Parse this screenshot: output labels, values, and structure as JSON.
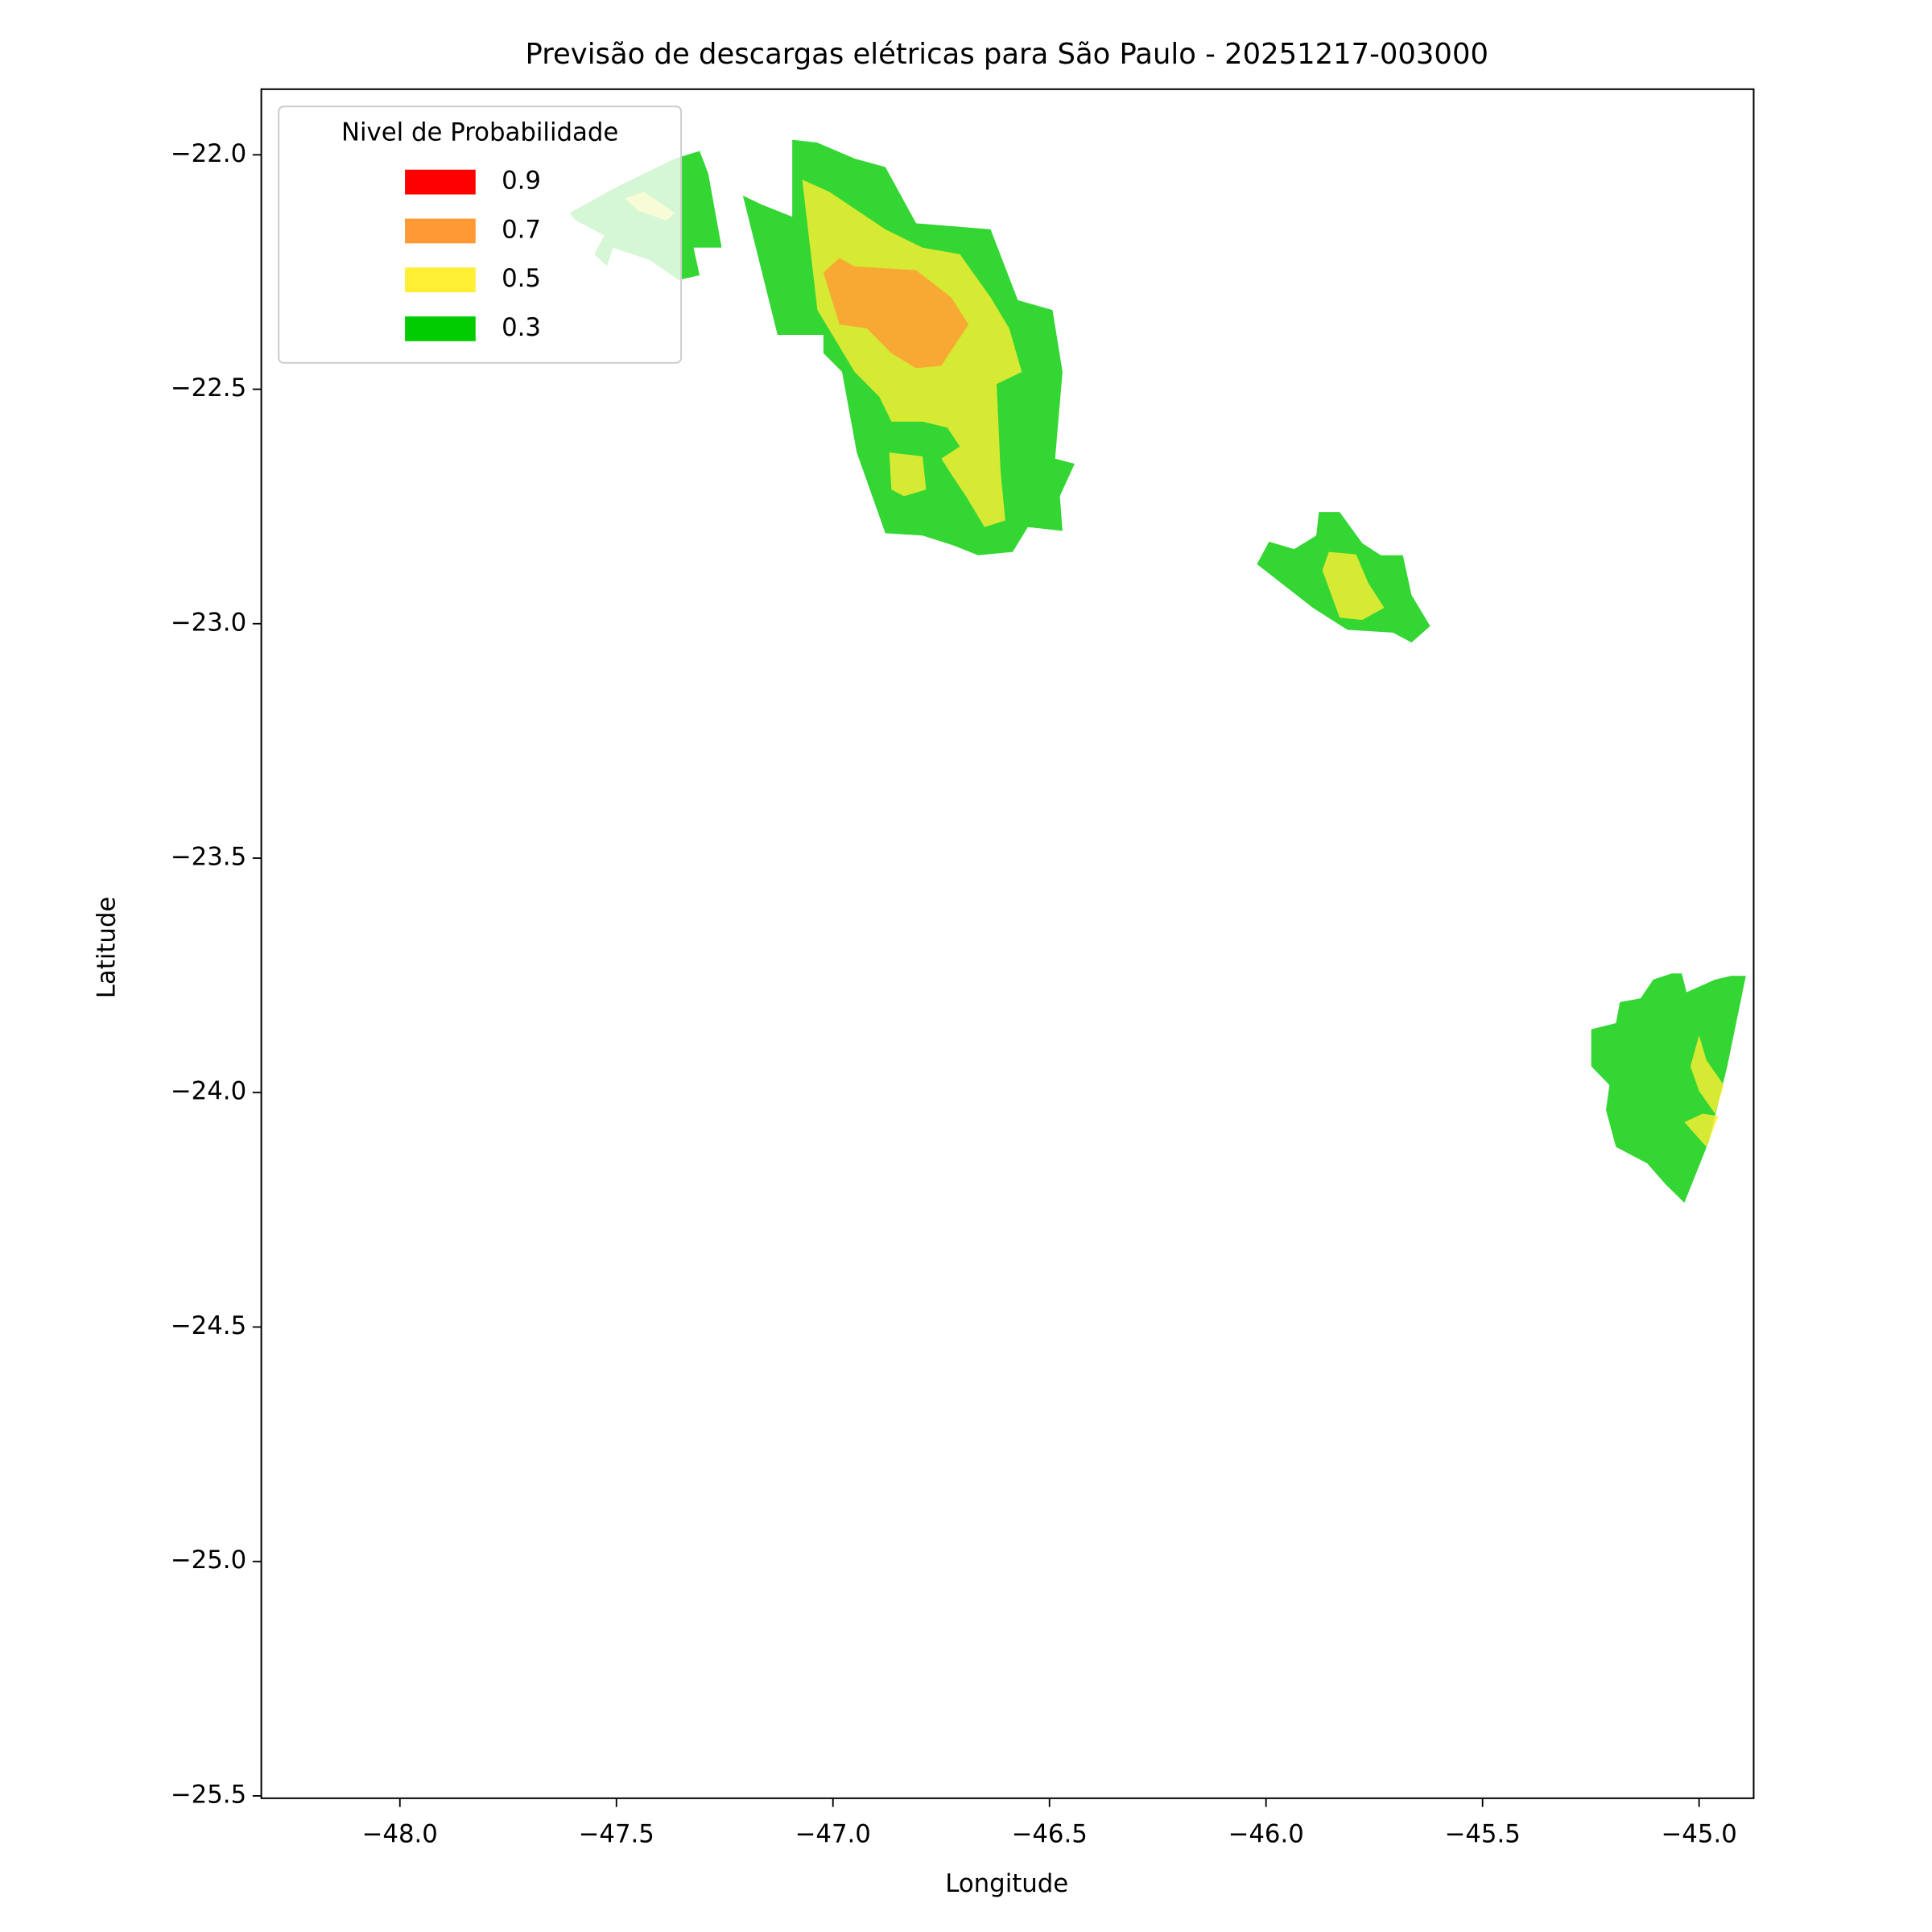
{
  "chart_data": {
    "type": "contourf",
    "title": "Previsão de descargas elétricas para São Paulo - 20251217-003000",
    "x_label": "Longitude",
    "y_label": "Latitude",
    "xlim": [
      -48.32,
      -44.874
    ],
    "ylim": [
      -25.505,
      -21.86
    ],
    "xticks": [
      {
        "value": -48,
        "label": "−48.0"
      },
      {
        "value": -47.5,
        "label": "−47.5"
      },
      {
        "value": -47,
        "label": "−47.0"
      },
      {
        "value": -46.5,
        "label": "−46.5"
      },
      {
        "value": -46,
        "label": "−46.0"
      },
      {
        "value": -45.5,
        "label": "−45.5"
      },
      {
        "value": -45,
        "label": "−45.0"
      }
    ],
    "yticks": [
      {
        "value": -22,
        "label": "−22.0"
      },
      {
        "value": -22.5,
        "label": "−22.5"
      },
      {
        "value": -23,
        "label": "−23.0"
      },
      {
        "value": -23.5,
        "label": "−23.5"
      },
      {
        "value": -24,
        "label": "−24.0"
      },
      {
        "value": -24.5,
        "label": "−24.5"
      },
      {
        "value": -25,
        "label": "−25.0"
      },
      {
        "value": -25.5,
        "label": "−25.5"
      }
    ],
    "legend_title": "Nivel de Probabilidade",
    "legend_position": "upper-left",
    "fill_opacity": 0.8,
    "series": [
      {
        "name": "0.9",
        "color": "#ff0000",
        "polygons": []
      },
      {
        "name": "0.7",
        "color": "#ff9933",
        "polygons": [
          [
            [
              -47.022,
              -22.251
            ],
            [
              -46.985,
              -22.22
            ],
            [
              -46.95,
              -22.238
            ],
            [
              -46.808,
              -22.246
            ],
            [
              -46.727,
              -22.304
            ],
            [
              -46.687,
              -22.362
            ],
            [
              -46.75,
              -22.45
            ],
            [
              -46.808,
              -22.455
            ],
            [
              -46.865,
              -22.423
            ],
            [
              -46.922,
              -22.37
            ],
            [
              -46.985,
              -22.362
            ]
          ]
        ]
      },
      {
        "name": "0.5",
        "color": "#ffee33",
        "polygons": [
          [
            [
              -47.071,
              -22.053
            ],
            [
              -47.008,
              -22.079
            ],
            [
              -46.879,
              -22.159
            ],
            [
              -46.793,
              -22.198
            ],
            [
              -46.707,
              -22.212
            ],
            [
              -46.636,
              -22.304
            ],
            [
              -46.593,
              -22.37
            ],
            [
              -46.564,
              -22.463
            ],
            [
              -46.622,
              -22.489
            ],
            [
              -46.613,
              -22.675
            ],
            [
              -46.602,
              -22.78
            ],
            [
              -46.65,
              -22.794
            ],
            [
              -46.693,
              -22.728
            ],
            [
              -46.722,
              -22.688
            ],
            [
              -46.75,
              -22.648
            ],
            [
              -46.707,
              -22.622
            ],
            [
              -46.736,
              -22.582
            ],
            [
              -46.793,
              -22.569
            ],
            [
              -46.865,
              -22.569
            ],
            [
              -46.893,
              -22.516
            ],
            [
              -46.95,
              -22.463
            ],
            [
              -47.036,
              -22.331
            ]
          ],
          [
            [
              -46.87,
              -22.635
            ],
            [
              -46.793,
              -22.643
            ],
            [
              -46.785,
              -22.714
            ],
            [
              -46.836,
              -22.728
            ],
            [
              -46.865,
              -22.714
            ]
          ],
          [
            [
              -47.48,
              -22.093
            ],
            [
              -47.437,
              -22.079
            ],
            [
              -47.365,
              -22.124
            ],
            [
              -47.385,
              -22.14
            ],
            [
              -47.451,
              -22.119
            ]
          ],
          [
            [
              -45.87,
              -22.886
            ],
            [
              -45.855,
              -22.847
            ],
            [
              -45.792,
              -22.852
            ],
            [
              -45.764,
              -22.913
            ],
            [
              -45.727,
              -22.966
            ],
            [
              -45.778,
              -22.992
            ],
            [
              -45.83,
              -22.987
            ]
          ],
          [
            [
              -45.02,
              -23.944
            ],
            [
              -45.0,
              -23.878
            ],
            [
              -44.983,
              -23.931
            ],
            [
              -44.943,
              -23.984
            ],
            [
              -44.963,
              -24.045
            ],
            [
              -45.0,
              -23.997
            ]
          ],
          [
            [
              -45.034,
              -24.063
            ],
            [
              -44.992,
              -24.045
            ],
            [
              -44.955,
              -24.05
            ],
            [
              -44.983,
              -24.116
            ]
          ]
        ]
      },
      {
        "name": "0.3",
        "color": "#00cc00",
        "polygons": [
          [
            [
              -47.094,
              -21.968
            ],
            [
              -47.036,
              -21.974
            ],
            [
              -46.95,
              -22.008
            ],
            [
              -46.879,
              -22.026
            ],
            [
              -46.808,
              -22.146
            ],
            [
              -46.636,
              -22.159
            ],
            [
              -46.573,
              -22.31
            ],
            [
              -46.493,
              -22.331
            ],
            [
              -46.47,
              -22.463
            ],
            [
              -46.487,
              -22.648
            ],
            [
              -46.442,
              -22.659
            ],
            [
              -46.476,
              -22.728
            ],
            [
              -46.47,
              -22.802
            ],
            [
              -46.55,
              -22.794
            ],
            [
              -46.585,
              -22.847
            ],
            [
              -46.665,
              -22.854
            ],
            [
              -46.722,
              -22.833
            ],
            [
              -46.793,
              -22.812
            ],
            [
              -46.879,
              -22.807
            ],
            [
              -46.945,
              -22.635
            ],
            [
              -46.979,
              -22.463
            ],
            [
              -47.022,
              -22.423
            ],
            [
              -47.022,
              -22.384
            ],
            [
              -47.128,
              -22.384
            ],
            [
              -47.208,
              -22.087
            ],
            [
              -47.165,
              -22.106
            ],
            [
              -47.094,
              -22.132
            ]
          ],
          [
            [
              -47.608,
              -22.124
            ],
            [
              -47.494,
              -22.066
            ],
            [
              -47.365,
              -22.008
            ],
            [
              -47.308,
              -21.992
            ],
            [
              -47.299,
              -22.013
            ],
            [
              -47.288,
              -22.04
            ],
            [
              -47.257,
              -22.198
            ],
            [
              -47.322,
              -22.198
            ],
            [
              -47.308,
              -22.257
            ],
            [
              -47.357,
              -22.267
            ],
            [
              -47.422,
              -22.225
            ],
            [
              -47.508,
              -22.198
            ],
            [
              -47.522,
              -22.238
            ],
            [
              -47.551,
              -22.212
            ],
            [
              -47.528,
              -22.172
            ],
            [
              -47.594,
              -22.14
            ]
          ],
          [
            [
              -46.021,
              -22.873
            ],
            [
              -45.993,
              -22.825
            ],
            [
              -45.935,
              -22.841
            ],
            [
              -45.884,
              -22.812
            ],
            [
              -45.878,
              -22.762
            ],
            [
              -45.83,
              -22.762
            ],
            [
              -45.778,
              -22.828
            ],
            [
              -45.735,
              -22.854
            ],
            [
              -45.684,
              -22.854
            ],
            [
              -45.664,
              -22.939
            ],
            [
              -45.621,
              -23.005
            ],
            [
              -45.664,
              -23.04
            ],
            [
              -45.707,
              -23.019
            ],
            [
              -45.812,
              -23.013
            ],
            [
              -45.892,
              -22.966
            ]
          ],
          [
            [
              -45.249,
              -23.865
            ],
            [
              -45.192,
              -23.852
            ],
            [
              -45.183,
              -23.807
            ],
            [
              -45.135,
              -23.799
            ],
            [
              -45.106,
              -23.759
            ],
            [
              -45.063,
              -23.746
            ],
            [
              -45.04,
              -23.746
            ],
            [
              -45.029,
              -23.786
            ],
            [
              -44.963,
              -23.759
            ],
            [
              -44.926,
              -23.751
            ],
            [
              -44.892,
              -23.751
            ],
            [
              -44.935,
              -23.944
            ],
            [
              -44.977,
              -24.103
            ],
            [
              -45.034,
              -24.235
            ],
            [
              -45.077,
              -24.196
            ],
            [
              -45.12,
              -24.151
            ],
            [
              -45.192,
              -24.116
            ],
            [
              -45.215,
              -24.037
            ],
            [
              -45.207,
              -23.984
            ],
            [
              -45.249,
              -23.944
            ]
          ]
        ]
      }
    ]
  }
}
